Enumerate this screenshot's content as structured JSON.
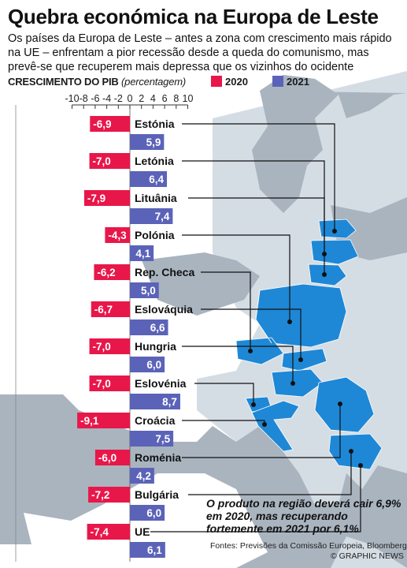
{
  "title": "Quebra económica na Europa de Leste",
  "subtitle": "Os países da Europa de Leste – antes a zona com crescimento mais rápido na UE – enfrentam a pior recessão desde a queda do comunismo, mas prevê-se que recuperem mais depressa que os vizinhos do ocidente",
  "legend": {
    "label_main": "CRESCIMENTO DO PIB",
    "label_unit": "(percentagem)",
    "items": [
      {
        "name": "2020",
        "color": "#e8174a"
      },
      {
        "name": "2021",
        "color": "#5b63b8"
      }
    ]
  },
  "chart_data": {
    "type": "bar",
    "orientation": "horizontal",
    "x_axis_ticks": [
      "-10",
      "-8",
      "-6",
      "-4",
      "-2",
      "0",
      "2",
      "4",
      "6",
      "8",
      "10"
    ],
    "xlim": [
      -10,
      10
    ],
    "categories": [
      "Estónia",
      "Letónia",
      "Lituânia",
      "Polónia",
      "Rep. Checa",
      "Eslováquia",
      "Hungria",
      "Eslovénia",
      "Croácia",
      "Roménia",
      "Bulgária",
      "UE"
    ],
    "series": [
      {
        "name": "2020",
        "color": "#e8174a",
        "values": [
          -6.9,
          -7.0,
          -7.9,
          -4.3,
          -6.2,
          -6.7,
          -7.0,
          -7.0,
          -9.1,
          -6.0,
          -7.2,
          -7.4
        ],
        "labels": [
          "-6,9",
          "-7,0",
          "-7,9",
          "-4,3",
          "-6,2",
          "-6,7",
          "-7,0",
          "-7,0",
          "-9,1",
          "-6,0",
          "-7,2",
          "-7,4"
        ]
      },
      {
        "name": "2021",
        "color": "#5b63b8",
        "values": [
          5.9,
          6.4,
          7.4,
          4.1,
          5.0,
          6.6,
          6.0,
          8.7,
          7.5,
          4.2,
          6.0,
          6.1
        ],
        "labels": [
          "5,9",
          "6,4",
          "7,4",
          "4,1",
          "5,0",
          "6,6",
          "6,0",
          "8,7",
          "7,5",
          "4,2",
          "6,0",
          "6,1"
        ]
      }
    ]
  },
  "map": {
    "highlight_color": "#1e88d6",
    "land_color": "#a9b4bf",
    "sea_color": "#d5dde4"
  },
  "callout": "O produto na região deverá cair 6,9% em 2020, mas recuperando fortemente em 2021 por 6,1%",
  "source": "Fontes: Previsões da Comissão Europeia, Bloomberg",
  "credit": "© GRAPHIC NEWS"
}
